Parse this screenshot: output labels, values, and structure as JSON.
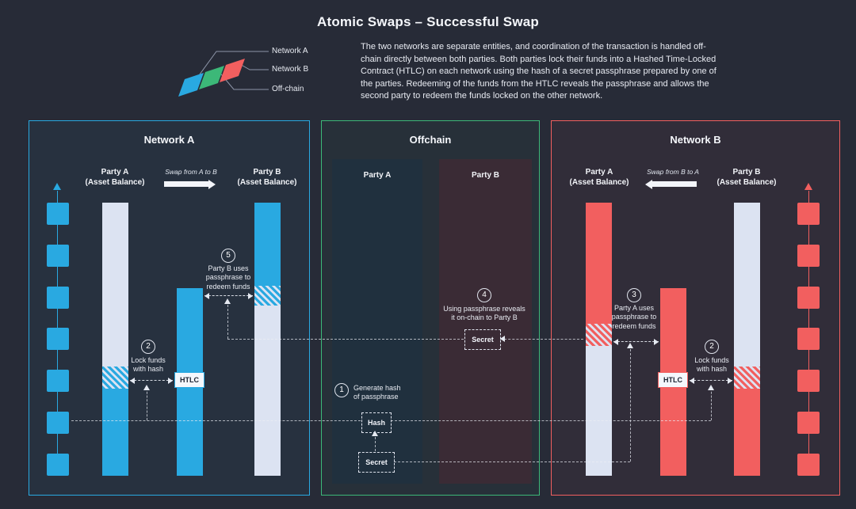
{
  "title": "Atomic Swaps – Successful Swap",
  "description": "The two networks are separate entities, and coordination of the transaction is handled off-chain directly between both parties. Both parties lock their funds into a Hashed Time-Locked Contract (HTLC) on each network using the hash of a secret passphrase prepared by one of the parties. Redeeming of the funds from the HTLC reveals the passphrase and allows the second party to redeem the funds locked on the other network.",
  "legend": {
    "network_a": "Network A",
    "network_b": "Network B",
    "offchain": "Off-chain"
  },
  "colors": {
    "background": "#272b37",
    "network_a": "#29a9e1",
    "network_b": "#f25f5f",
    "offchain": "#3cb878",
    "light_bar": "#dce3f2",
    "offchain_col_a": "#20303e",
    "offchain_col_b": "#3a2b35"
  },
  "network_a": {
    "title": "Network A",
    "party_a_label": "Party A\n(Asset Balance)",
    "swap_label": "Swap from A to B",
    "party_b_label": "Party B\n(Asset Balance)",
    "htlc_label": "HTLC",
    "chain_blocks": 7,
    "step2": {
      "num": "2",
      "text": "Lock funds\nwith hash"
    },
    "step5": {
      "num": "5",
      "text": "Party B uses\npassphrase to\nredeem funds"
    }
  },
  "offchain": {
    "title": "Offchain",
    "party_a_label": "Party A",
    "party_b_label": "Party B",
    "hash_label": "Hash",
    "secret_label": "Secret",
    "secret2_label": "Secret",
    "step1": {
      "num": "1",
      "text": "Generate hash\nof passphrase"
    },
    "step4": {
      "num": "4",
      "text": "Using passphrase reveals\nit on-chain to Party B"
    }
  },
  "network_b": {
    "title": "Network B",
    "party_a_label": "Party A\n(Asset Balance)",
    "swap_label": "Swap from B to A",
    "party_b_label": "Party B\n(Asset Balance)",
    "htlc_label": "HTLC",
    "chain_blocks": 7,
    "step3": {
      "num": "3",
      "text": "Party A uses\npassphrase to\nredeem funds"
    },
    "step2": {
      "num": "2",
      "text": "Lock funds\nwith hash"
    }
  }
}
